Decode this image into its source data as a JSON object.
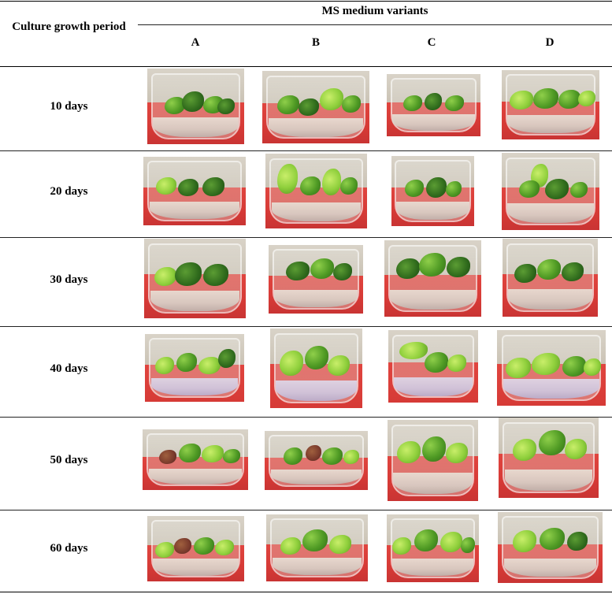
{
  "header": {
    "row_label_header": "Culture growth period",
    "group_header": "MS medium variants",
    "columns": [
      "A",
      "B",
      "C",
      "D"
    ]
  },
  "rows": [
    {
      "label": "10 days"
    },
    {
      "label": "20 days"
    },
    {
      "label": "30 days"
    },
    {
      "label": "40 days"
    },
    {
      "label": "50 days"
    },
    {
      "label": "60 days"
    }
  ],
  "image_description_names": {
    "cell_image": "plantlet-culture-jar-photo"
  },
  "colors": {
    "background": "#ffffff",
    "rule": "#000000",
    "backdrop_red": "#d63a36",
    "leaf_green": "#4f9a24"
  }
}
